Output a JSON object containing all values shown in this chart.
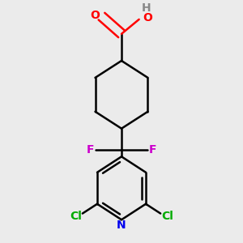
{
  "background_color": "#ebebeb",
  "bond_color": "#000000",
  "bond_width": 1.8,
  "figsize": [
    3.0,
    3.0
  ],
  "dpi": 100,
  "colors": {
    "O": "#ff0000",
    "N": "#0000ee",
    "F": "#cc00cc",
    "Cl": "#00aa00",
    "H": "#888888",
    "C": "#000000"
  },
  "xlim": [
    0.0,
    1.0
  ],
  "ylim": [
    0.02,
    1.02
  ]
}
